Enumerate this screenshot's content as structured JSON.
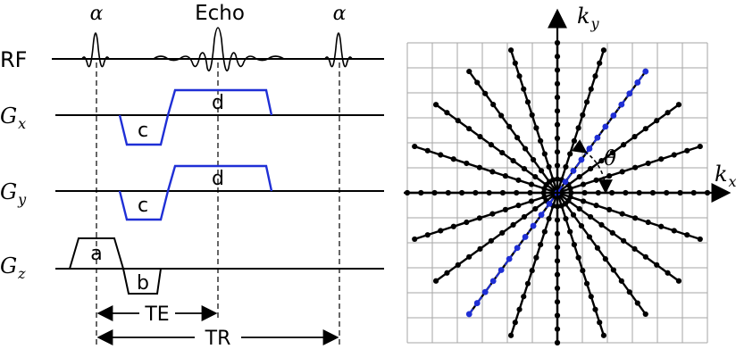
{
  "sequence": {
    "labels": {
      "alpha_left": "α",
      "echo": "Echo",
      "alpha_right": "α",
      "rf": "RF",
      "gx_main": "G",
      "gx_sub": "x",
      "gy_main": "G",
      "gy_sub": "y",
      "gz_main": "G",
      "gz_sub": "z",
      "a": "a",
      "b": "b",
      "c_x": "c",
      "d_x": "d",
      "c_y": "c",
      "d_y": "d",
      "te": "TE",
      "tr": "TR"
    }
  },
  "kspace": {
    "labels": {
      "ky_main": "k",
      "ky_sub": "y",
      "kx_main": "k",
      "kx_sub": "x",
      "theta": "θ"
    },
    "spoke_count": 10,
    "points_per_half_spoke": 11,
    "highlighted_spoke_angle_deg": 54
  },
  "colors": {
    "line": "#000000",
    "gradient": "#1f2fd6",
    "grid": "#a6a6a6",
    "highlight": "#1f2fd6"
  }
}
